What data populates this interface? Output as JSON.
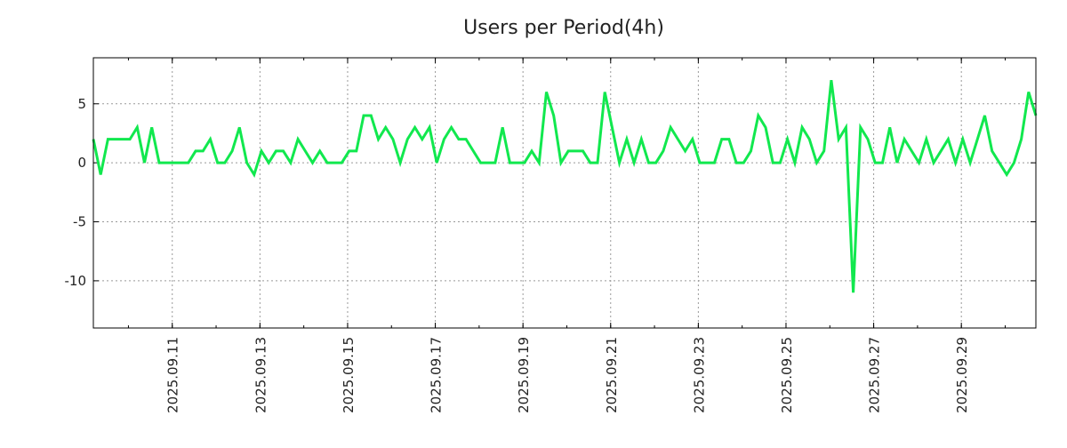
{
  "chart_data": {
    "type": "line",
    "title": "Users per Period(4h)",
    "xlabel": "",
    "ylabel": "",
    "x_unit": "day of September 2025",
    "x_start": 9.2,
    "x_step": 0.16667,
    "xlim": [
      9.2,
      30.7
    ],
    "ylim": [
      -14,
      8.9
    ],
    "grid": true,
    "y_ticks": [
      5,
      0,
      -5,
      -10
    ],
    "y_tick_labels": [
      "5",
      "0",
      "-5",
      "-10"
    ],
    "x_ticks": [
      11,
      13,
      15,
      17,
      19,
      21,
      23,
      25,
      27,
      29
    ],
    "x_tick_labels": [
      "2025.09.11",
      "2025.09.13",
      "2025.09.15",
      "2025.09.17",
      "2025.09.19",
      "2025.09.21",
      "2025.09.23",
      "2025.09.25",
      "2025.09.27",
      "2025.09.29"
    ],
    "series": [
      {
        "name": "users",
        "color": "#11e84e",
        "values": [
          2,
          -1,
          2,
          2,
          2,
          2,
          3,
          0,
          3,
          0,
          0,
          0,
          0,
          0,
          1,
          1,
          2,
          0,
          0,
          1,
          3,
          0,
          -1,
          1,
          0,
          1,
          1,
          0,
          2,
          1,
          0,
          1,
          0,
          0,
          0,
          1,
          1,
          4,
          4,
          2,
          3,
          2,
          0,
          2,
          3,
          2,
          3,
          0,
          2,
          3,
          2,
          2,
          1,
          0,
          0,
          0,
          3,
          0,
          0,
          0,
          1,
          0,
          6,
          4,
          0,
          1,
          1,
          1,
          0,
          0,
          6,
          3,
          0,
          2,
          0,
          2,
          0,
          0,
          1,
          3,
          2,
          1,
          2,
          0,
          0,
          0,
          2,
          2,
          0,
          0,
          1,
          4,
          3,
          0,
          0,
          2,
          0,
          3,
          2,
          0,
          1,
          7,
          2,
          3,
          -11,
          3,
          2,
          0,
          0,
          3,
          0,
          2,
          1,
          0,
          2,
          0,
          1,
          2,
          0,
          2,
          0,
          2,
          4,
          1,
          0,
          -1,
          0,
          2,
          6,
          4
        ]
      }
    ]
  }
}
